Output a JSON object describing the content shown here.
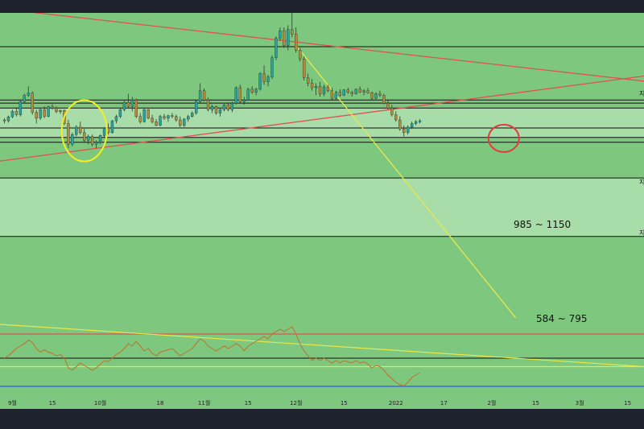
{
  "colors": {
    "background": "#7ec77f",
    "frame": "#1e222d",
    "zone": "#a8dca8",
    "level_line": "#111111",
    "up_candle": "#26a69a",
    "down_candle": "#b58a3a",
    "red_trendline": "#e05252",
    "yellow_trendline": "#e8e84a",
    "yellow_circle": "#f2ee28",
    "red_circle": "#e23b3b",
    "oscillator": "#c0712a",
    "blue_line": "#3a6fd8"
  },
  "chart_data": {
    "type": "candlestick",
    "title": "",
    "xlabel": "",
    "ylabel": "",
    "x_ticks": [
      {
        "label": "9월",
        "index": 2
      },
      {
        "label": "15",
        "index": 12
      },
      {
        "label": "10월",
        "index": 24
      },
      {
        "label": "18",
        "index": 39
      },
      {
        "label": "11월",
        "index": 50
      },
      {
        "label": "15",
        "index": 61
      },
      {
        "label": "12월",
        "index": 73
      },
      {
        "label": "15",
        "index": 85
      },
      {
        "label": "2022",
        "index": 98
      },
      {
        "label": "17",
        "index": 110
      },
      {
        "label": "2월",
        "index": 122
      },
      {
        "label": "15",
        "index": 133
      },
      {
        "label": "3월",
        "index": 144
      },
      {
        "label": "15",
        "index": 156
      }
    ],
    "x_range": [
      0,
      160
    ],
    "y_range": [
      380,
      1900
    ],
    "candles": [
      [
        1080,
        1090,
        1060,
        1075
      ],
      [
        1075,
        1105,
        1065,
        1098
      ],
      [
        1098,
        1140,
        1090,
        1130
      ],
      [
        1130,
        1150,
        1100,
        1110
      ],
      [
        1110,
        1200,
        1100,
        1190
      ],
      [
        1190,
        1240,
        1180,
        1230
      ],
      [
        1230,
        1290,
        1220,
        1245
      ],
      [
        1245,
        1255,
        1110,
        1125
      ],
      [
        1125,
        1140,
        1060,
        1090
      ],
      [
        1090,
        1150,
        1080,
        1140
      ],
      [
        1140,
        1160,
        1090,
        1100
      ],
      [
        1100,
        1165,
        1095,
        1158
      ],
      [
        1158,
        1175,
        1140,
        1150
      ],
      [
        1150,
        1160,
        1120,
        1128
      ],
      [
        1128,
        1140,
        1115,
        1135
      ],
      [
        1135,
        1140,
        1050,
        1060
      ],
      [
        1060,
        1080,
        930,
        950
      ],
      [
        950,
        1010,
        940,
        1000
      ],
      [
        1000,
        1050,
        990,
        1040
      ],
      [
        1040,
        1070,
        1000,
        1010
      ],
      [
        1010,
        1030,
        960,
        970
      ],
      [
        970,
        1000,
        950,
        990
      ],
      [
        990,
        1000,
        940,
        950
      ],
      [
        950,
        970,
        930,
        960
      ],
      [
        960,
        1000,
        950,
        995
      ],
      [
        995,
        1040,
        985,
        1035
      ],
      [
        1035,
        1060,
        1000,
        1010
      ],
      [
        1010,
        1080,
        1005,
        1075
      ],
      [
        1075,
        1110,
        1060,
        1100
      ],
      [
        1100,
        1150,
        1090,
        1140
      ],
      [
        1140,
        1200,
        1130,
        1185
      ],
      [
        1185,
        1240,
        1150,
        1160
      ],
      [
        1160,
        1220,
        1130,
        1200
      ],
      [
        1200,
        1210,
        1090,
        1100
      ],
      [
        1100,
        1120,
        1060,
        1070
      ],
      [
        1070,
        1150,
        1065,
        1140
      ],
      [
        1140,
        1145,
        1085,
        1090
      ],
      [
        1090,
        1110,
        1060,
        1070
      ],
      [
        1070,
        1085,
        1045,
        1050
      ],
      [
        1050,
        1110,
        1045,
        1100
      ],
      [
        1100,
        1115,
        1080,
        1090
      ],
      [
        1090,
        1110,
        1070,
        1105
      ],
      [
        1105,
        1120,
        1090,
        1100
      ],
      [
        1100,
        1110,
        1070,
        1080
      ],
      [
        1080,
        1100,
        1040,
        1050
      ],
      [
        1050,
        1090,
        1040,
        1085
      ],
      [
        1085,
        1110,
        1070,
        1100
      ],
      [
        1100,
        1130,
        1095,
        1120
      ],
      [
        1120,
        1200,
        1110,
        1190
      ],
      [
        1190,
        1310,
        1180,
        1260
      ],
      [
        1260,
        1275,
        1190,
        1200
      ],
      [
        1200,
        1215,
        1130,
        1140
      ],
      [
        1140,
        1170,
        1120,
        1160
      ],
      [
        1160,
        1165,
        1110,
        1120
      ],
      [
        1120,
        1150,
        1100,
        1140
      ],
      [
        1140,
        1175,
        1130,
        1170
      ],
      [
        1170,
        1185,
        1130,
        1140
      ],
      [
        1140,
        1190,
        1125,
        1180
      ],
      [
        1180,
        1290,
        1170,
        1280
      ],
      [
        1280,
        1300,
        1180,
        1190
      ],
      [
        1190,
        1220,
        1170,
        1200
      ],
      [
        1200,
        1280,
        1195,
        1270
      ],
      [
        1270,
        1290,
        1240,
        1250
      ],
      [
        1250,
        1280,
        1230,
        1270
      ],
      [
        1270,
        1390,
        1260,
        1380
      ],
      [
        1380,
        1440,
        1300,
        1320
      ],
      [
        1320,
        1370,
        1290,
        1355
      ],
      [
        1355,
        1520,
        1340,
        1500
      ],
      [
        1500,
        1680,
        1480,
        1660
      ],
      [
        1660,
        1760,
        1640,
        1730
      ],
      [
        1730,
        1760,
        1580,
        1600
      ],
      [
        1600,
        1780,
        1560,
        1740
      ],
      [
        1740,
        1900,
        1670,
        1700
      ],
      [
        1700,
        1760,
        1540,
        1560
      ],
      [
        1560,
        1580,
        1470,
        1490
      ],
      [
        1490,
        1510,
        1330,
        1350
      ],
      [
        1350,
        1380,
        1290,
        1310
      ],
      [
        1310,
        1340,
        1260,
        1280
      ],
      [
        1280,
        1310,
        1230,
        1290
      ],
      [
        1290,
        1320,
        1220,
        1240
      ],
      [
        1240,
        1300,
        1225,
        1285
      ],
      [
        1285,
        1300,
        1250,
        1260
      ],
      [
        1260,
        1280,
        1200,
        1210
      ],
      [
        1210,
        1260,
        1200,
        1250
      ],
      [
        1250,
        1270,
        1220,
        1230
      ],
      [
        1230,
        1270,
        1225,
        1265
      ],
      [
        1265,
        1280,
        1240,
        1250
      ],
      [
        1250,
        1260,
        1220,
        1240
      ],
      [
        1240,
        1275,
        1235,
        1270
      ],
      [
        1270,
        1290,
        1245,
        1250
      ],
      [
        1250,
        1270,
        1230,
        1260
      ],
      [
        1260,
        1280,
        1240,
        1245
      ],
      [
        1245,
        1255,
        1200,
        1210
      ],
      [
        1210,
        1250,
        1205,
        1240
      ],
      [
        1240,
        1260,
        1220,
        1230
      ],
      [
        1230,
        1240,
        1170,
        1180
      ],
      [
        1180,
        1200,
        1140,
        1150
      ],
      [
        1150,
        1170,
        1100,
        1110
      ],
      [
        1110,
        1130,
        1070,
        1080
      ],
      [
        1080,
        1100,
        1020,
        1030
      ],
      [
        1030,
        1050,
        990,
        1010
      ],
      [
        1010,
        1050,
        1000,
        1040
      ],
      [
        1040,
        1070,
        1030,
        1060
      ],
      [
        1060,
        1080,
        1050,
        1070
      ],
      [
        1070,
        1085,
        1060,
        1075
      ]
    ],
    "horizontal_levels": [
      1590,
      1200,
      1180,
      1035,
      960
    ],
    "zones": [
      {
        "label": "985 ~ 1150",
        "low": 985,
        "high": 1150
      },
      {
        "label": "584 ~ 795",
        "low": 584,
        "high": 795
      }
    ],
    "trendlines": [
      {
        "color": "red",
        "from": [
          -5,
          1960
        ],
        "to": [
          165,
          1310
        ]
      },
      {
        "color": "red",
        "from": [
          -5,
          860
        ],
        "to": [
          165,
          1380
        ]
      },
      {
        "color": "yellow",
        "from": [
          73,
          1600
        ],
        "to": [
          128,
          380
        ]
      }
    ],
    "annotations": [
      {
        "shape": "ellipse",
        "color": "yellow",
        "center": [
          20,
          1020
        ]
      },
      {
        "shape": "ellipse",
        "color": "red",
        "center": [
          125,
          980
        ]
      }
    ],
    "right_edge_labels": [
      "지",
      "지",
      "지"
    ],
    "oscillator": {
      "values": [
        50,
        52,
        55,
        58,
        60,
        62,
        65,
        63,
        58,
        55,
        57,
        55,
        54,
        52,
        53,
        50,
        42,
        40,
        43,
        46,
        44,
        42,
        40,
        42,
        45,
        48,
        47,
        50,
        53,
        55,
        58,
        62,
        60,
        64,
        60,
        56,
        58,
        54,
        52,
        55,
        56,
        57,
        58,
        55,
        52,
        54,
        56,
        58,
        62,
        66,
        64,
        60,
        58,
        56,
        58,
        60,
        58,
        60,
        62,
        60,
        56,
        60,
        62,
        64,
        66,
        68,
        66,
        70,
        72,
        74,
        72,
        74,
        76,
        70,
        62,
        56,
        52,
        48,
        50,
        48,
        50,
        48,
        46,
        48,
        46,
        48,
        47,
        46,
        48,
        46,
        47,
        45,
        42,
        44,
        43,
        40,
        36,
        33,
        30,
        28,
        27,
        30,
        34,
        36,
        38
      ],
      "y_range": [
        20,
        80
      ],
      "levels": {
        "upper": 70,
        "middle": 50,
        "lower": 43
      }
    }
  }
}
